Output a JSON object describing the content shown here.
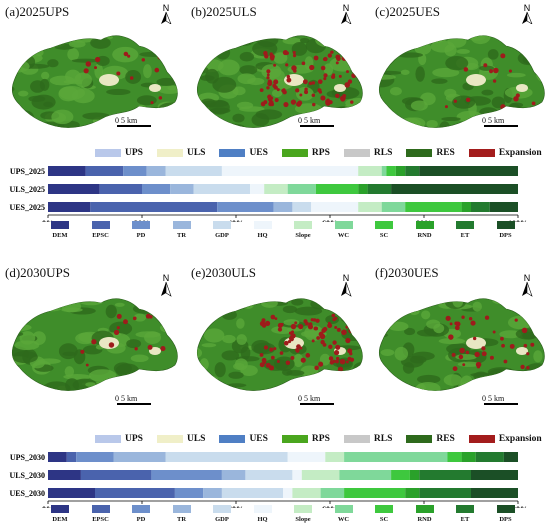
{
  "panels_2025": [
    {
      "title": "(a)2025UPS",
      "expansion": "low"
    },
    {
      "title": "(b)2025ULS",
      "expansion": "high"
    },
    {
      "title": "(c)2025UES",
      "expansion": "low"
    }
  ],
  "panels_2030": [
    {
      "title": "(d)2030UPS",
      "expansion": "low"
    },
    {
      "title": "(e)2030ULS",
      "expansion": "high"
    },
    {
      "title": "(f)2030UES",
      "expansion": "mid"
    }
  ],
  "north_label": "N",
  "scale_label": "0  5 km",
  "land_legend": [
    {
      "label": "UPS",
      "color": "#b9c8ea"
    },
    {
      "label": "ULS",
      "color": "#f0efc8"
    },
    {
      "label": "UES",
      "color": "#4f7fc4"
    },
    {
      "label": "RPS",
      "color": "#4aa61e"
    },
    {
      "label": "RLS",
      "color": "#c8c8c8"
    },
    {
      "label": "RES",
      "color": "#2e6a1c"
    },
    {
      "label": "Expansion",
      "color": "#a31c1c"
    }
  ],
  "factor_legend": [
    {
      "label": "DEM",
      "color": "#2d3585"
    },
    {
      "label": "EPSC",
      "color": "#4a63ad"
    },
    {
      "label": "PD",
      "color": "#6d8fcb"
    },
    {
      "label": "TR",
      "color": "#9ab6dc"
    },
    {
      "label": "GDP",
      "color": "#c9dced"
    },
    {
      "label": "HQ",
      "color": "#eef5fb"
    },
    {
      "label": "Slope",
      "color": "#c4ecc4"
    },
    {
      "label": "WC",
      "color": "#7fd89a"
    },
    {
      "label": "SC",
      "color": "#3ec83e"
    },
    {
      "label": "RND",
      "color": "#2aa12a"
    },
    {
      "label": "ET",
      "color": "#237a2f"
    },
    {
      "label": "DPS",
      "color": "#1b4f26"
    }
  ],
  "axis_ticks": [
    "0%",
    "20%",
    "40%",
    "60%",
    "80%",
    "100%"
  ],
  "chart_data": [
    {
      "type": "bar",
      "orientation": "horizontal-stacked",
      "categories": [
        "UPS_2025",
        "ULS_2025",
        "UES_2025"
      ],
      "series": [
        {
          "name": "DEM",
          "values": [
            8,
            11,
            9
          ]
        },
        {
          "name": "EPSC",
          "values": [
            8,
            9,
            27
          ]
        },
        {
          "name": "PD",
          "values": [
            5,
            6,
            12
          ]
        },
        {
          "name": "TR",
          "values": [
            4,
            5,
            4
          ]
        },
        {
          "name": "GDP",
          "values": [
            12,
            12,
            4
          ]
        },
        {
          "name": "HQ",
          "values": [
            29,
            3,
            10
          ]
        },
        {
          "name": "Slope",
          "values": [
            5,
            5,
            5
          ]
        },
        {
          "name": "WC",
          "values": [
            1,
            6,
            5
          ]
        },
        {
          "name": "SC",
          "values": [
            2,
            9,
            12
          ]
        },
        {
          "name": "RND",
          "values": [
            2,
            2,
            2
          ]
        },
        {
          "name": "ET",
          "values": [
            3,
            5,
            4
          ]
        },
        {
          "name": "DPS",
          "values": [
            21,
            27,
            6
          ]
        }
      ],
      "xlim": [
        0,
        100
      ]
    },
    {
      "type": "bar",
      "orientation": "horizontal-stacked",
      "categories": [
        "UPS_2030",
        "ULS_2030",
        "UES_2030"
      ],
      "series": [
        {
          "name": "DEM",
          "values": [
            4,
            7,
            10
          ]
        },
        {
          "name": "EPSC",
          "values": [
            2,
            15,
            17
          ]
        },
        {
          "name": "PD",
          "values": [
            8,
            15,
            6
          ]
        },
        {
          "name": "TR",
          "values": [
            11,
            5,
            4
          ]
        },
        {
          "name": "GDP",
          "values": [
            26,
            10,
            13
          ]
        },
        {
          "name": "HQ",
          "values": [
            8,
            2,
            2
          ]
        },
        {
          "name": "Slope",
          "values": [
            4,
            8,
            6
          ]
        },
        {
          "name": "WC",
          "values": [
            22,
            11,
            5
          ]
        },
        {
          "name": "SC",
          "values": [
            3,
            4,
            13
          ]
        },
        {
          "name": "RND",
          "values": [
            3,
            2,
            3
          ]
        },
        {
          "name": "ET",
          "values": [
            6,
            11,
            11
          ]
        },
        {
          "name": "DPS",
          "values": [
            3,
            10,
            10
          ]
        }
      ],
      "xlim": [
        0,
        100
      ]
    }
  ]
}
